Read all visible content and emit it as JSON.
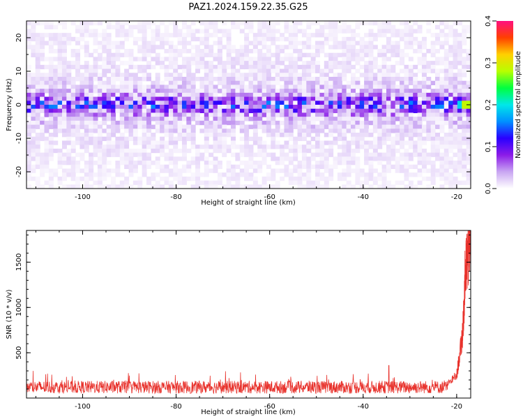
{
  "title": "PAZ1.2024.159.22.35.G25",
  "chart_data": [
    {
      "type": "heatmap",
      "xlabel": "Height of straight line (km)",
      "ylabel": "Frequency (Hz)",
      "xlim": [
        -112,
        -17
      ],
      "ylim": [
        -25,
        25
      ],
      "xticks": [
        -100,
        -80,
        -60,
        -40,
        -20
      ],
      "yticks": [
        -20,
        -10,
        0,
        10,
        20
      ],
      "colorbar": {
        "label": "Normalized spectral amplitude",
        "range": [
          0,
          0.4
        ],
        "ticks": [
          0.0,
          0.1,
          0.2,
          0.3,
          0.4
        ],
        "colors": [
          "#ffffff",
          "#c9a6f2",
          "#8c1ce8",
          "#2a00ff",
          "#0090ff",
          "#00e8e8",
          "#00ff40",
          "#b8ff00",
          "#ffd000",
          "#ff4000",
          "#ff1080"
        ]
      },
      "description_bands": [
        {
          "freq_center": 0,
          "freq_halfwidth": 3,
          "amplitude": 0.12
        },
        {
          "freq_center": 0,
          "freq_halfwidth": 8,
          "amplitude": 0.05
        },
        {
          "freq_center": 0,
          "freq_halfwidth": 25,
          "amplitude": 0.02
        }
      ],
      "peak": {
        "x": -18,
        "y": 0,
        "amplitude": 0.38
      }
    },
    {
      "type": "line",
      "xlabel": "Height of straight line (km)",
      "ylabel": "SNR (10 * v/v)",
      "xlim": [
        -112,
        -17
      ],
      "ylim": [
        0,
        1850
      ],
      "xticks": [
        -100,
        -80,
        -60,
        -40,
        -20
      ],
      "yticks": [
        500,
        1000,
        1500
      ],
      "series": [
        {
          "color": "#e8322c",
          "baseline_range": [
            30,
            300
          ],
          "baseline_typical": 120,
          "spike": {
            "x": -34.5,
            "y": 360
          },
          "tail": [
            {
              "x": -22,
              "y": 150
            },
            {
              "x": -20,
              "y": 250
            },
            {
              "x": -19,
              "y": 600
            },
            {
              "x": -18.6,
              "y": 800
            },
            {
              "x": -18.2,
              "y": 1350
            },
            {
              "x": -17.8,
              "y": 1520
            },
            {
              "x": -17.4,
              "y": 1620
            },
            {
              "x": -17.1,
              "y": 1850
            }
          ]
        }
      ]
    }
  ]
}
